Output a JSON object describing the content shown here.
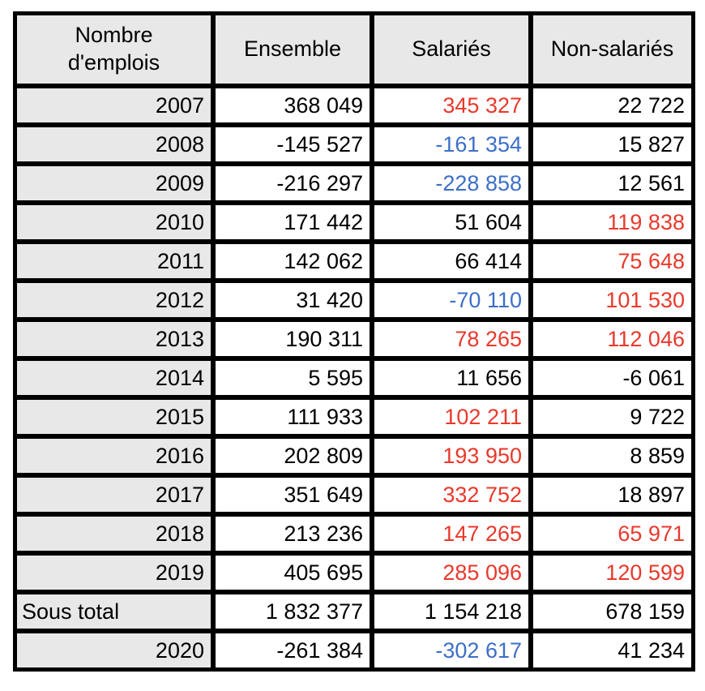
{
  "colors": {
    "black": "#000000",
    "red": "#e8392b",
    "blue": "#3c6fc8"
  },
  "table": {
    "headers": [
      "Nombre\nd'emplois",
      "Ensemble",
      "Salariés",
      "Non-salariés"
    ],
    "rows": [
      {
        "label": "2007",
        "align": "right",
        "values": [
          {
            "text": "368 049",
            "color": "black"
          },
          {
            "text": "345 327",
            "color": "red"
          },
          {
            "text": "22 722",
            "color": "black"
          }
        ]
      },
      {
        "label": "2008",
        "align": "right",
        "values": [
          {
            "text": "-145 527",
            "color": "black"
          },
          {
            "text": "-161 354",
            "color": "blue"
          },
          {
            "text": "15 827",
            "color": "black"
          }
        ]
      },
      {
        "label": "2009",
        "align": "right",
        "values": [
          {
            "text": "-216 297",
            "color": "black"
          },
          {
            "text": "-228 858",
            "color": "blue"
          },
          {
            "text": "12 561",
            "color": "black"
          }
        ]
      },
      {
        "label": "2010",
        "align": "right",
        "values": [
          {
            "text": "171 442",
            "color": "black"
          },
          {
            "text": "51 604",
            "color": "black"
          },
          {
            "text": "119 838",
            "color": "red"
          }
        ]
      },
      {
        "label": "2011",
        "align": "right",
        "values": [
          {
            "text": "142 062",
            "color": "black"
          },
          {
            "text": "66 414",
            "color": "black"
          },
          {
            "text": "75 648",
            "color": "red"
          }
        ]
      },
      {
        "label": "2012",
        "align": "right",
        "values": [
          {
            "text": "31 420",
            "color": "black"
          },
          {
            "text": "-70 110",
            "color": "blue"
          },
          {
            "text": "101 530",
            "color": "red"
          }
        ]
      },
      {
        "label": "2013",
        "align": "right",
        "values": [
          {
            "text": "190 311",
            "color": "black"
          },
          {
            "text": "78 265",
            "color": "red"
          },
          {
            "text": "112 046",
            "color": "red"
          }
        ]
      },
      {
        "label": "2014",
        "align": "right",
        "values": [
          {
            "text": "5 595",
            "color": "black"
          },
          {
            "text": "11 656",
            "color": "black"
          },
          {
            "text": "-6 061",
            "color": "black"
          }
        ]
      },
      {
        "label": "2015",
        "align": "right",
        "values": [
          {
            "text": "111 933",
            "color": "black"
          },
          {
            "text": "102 211",
            "color": "red"
          },
          {
            "text": "9 722",
            "color": "black"
          }
        ]
      },
      {
        "label": "2016",
        "align": "right",
        "values": [
          {
            "text": "202 809",
            "color": "black"
          },
          {
            "text": "193 950",
            "color": "red"
          },
          {
            "text": "8 859",
            "color": "black"
          }
        ]
      },
      {
        "label": "2017",
        "align": "right",
        "values": [
          {
            "text": "351 649",
            "color": "black"
          },
          {
            "text": "332 752",
            "color": "red"
          },
          {
            "text": "18 897",
            "color": "black"
          }
        ]
      },
      {
        "label": "2018",
        "align": "right",
        "values": [
          {
            "text": "213 236",
            "color": "black"
          },
          {
            "text": "147 265",
            "color": "red"
          },
          {
            "text": "65 971",
            "color": "red"
          }
        ]
      },
      {
        "label": "2019",
        "align": "right",
        "values": [
          {
            "text": "405 695",
            "color": "black"
          },
          {
            "text": "285 096",
            "color": "red"
          },
          {
            "text": "120 599",
            "color": "red"
          }
        ]
      },
      {
        "label": "Sous total",
        "align": "left",
        "values": [
          {
            "text": "1 832 377",
            "color": "black"
          },
          {
            "text": "1 154 218",
            "color": "black"
          },
          {
            "text": "678 159",
            "color": "black"
          }
        ]
      },
      {
        "label": "2020",
        "align": "right",
        "values": [
          {
            "text": "-261 384",
            "color": "black"
          },
          {
            "text": "-302 617",
            "color": "blue"
          },
          {
            "text": "41 234",
            "color": "black"
          }
        ]
      }
    ]
  },
  "chart_data": {
    "type": "table",
    "title": "Nombre d'emplois",
    "columns": [
      "Nombre d'emplois",
      "Ensemble",
      "Salariés",
      "Non-salariés"
    ],
    "rows": [
      {
        "label": "2007",
        "ensemble": 368049,
        "salaries": 345327,
        "non_salaries": 22722
      },
      {
        "label": "2008",
        "ensemble": -145527,
        "salaries": -161354,
        "non_salaries": 15827
      },
      {
        "label": "2009",
        "ensemble": -216297,
        "salaries": -228858,
        "non_salaries": 12561
      },
      {
        "label": "2010",
        "ensemble": 171442,
        "salaries": 51604,
        "non_salaries": 119838
      },
      {
        "label": "2011",
        "ensemble": 142062,
        "salaries": 66414,
        "non_salaries": 75648
      },
      {
        "label": "2012",
        "ensemble": 31420,
        "salaries": -70110,
        "non_salaries": 101530
      },
      {
        "label": "2013",
        "ensemble": 190311,
        "salaries": 78265,
        "non_salaries": 112046
      },
      {
        "label": "2014",
        "ensemble": 5595,
        "salaries": 11656,
        "non_salaries": -6061
      },
      {
        "label": "2015",
        "ensemble": 111933,
        "salaries": 102211,
        "non_salaries": 9722
      },
      {
        "label": "2016",
        "ensemble": 202809,
        "salaries": 193950,
        "non_salaries": 8859
      },
      {
        "label": "2017",
        "ensemble": 351649,
        "salaries": 332752,
        "non_salaries": 18897
      },
      {
        "label": "2018",
        "ensemble": 213236,
        "salaries": 147265,
        "non_salaries": 65971
      },
      {
        "label": "2019",
        "ensemble": 405695,
        "salaries": 285096,
        "non_salaries": 120599
      },
      {
        "label": "Sous total",
        "ensemble": 1832377,
        "salaries": 1154218,
        "non_salaries": 678159
      },
      {
        "label": "2020",
        "ensemble": -261384,
        "salaries": -302617,
        "non_salaries": 41234
      }
    ]
  }
}
